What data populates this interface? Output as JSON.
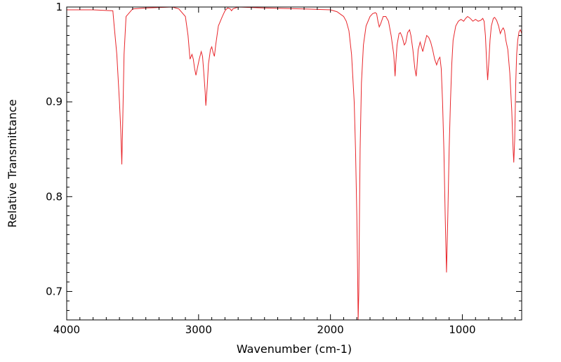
{
  "chart_data": {
    "type": "line",
    "xlabel": "Wavenumber (cm-1)",
    "ylabel": "Relative Transmittance",
    "xlim": [
      4000,
      550
    ],
    "ylim": [
      0.67,
      1.0
    ],
    "x_reversed": true,
    "xticks": [
      4000,
      3000,
      2000,
      1000
    ],
    "xtick_labels": [
      "4000",
      "3000",
      "2000",
      "1000"
    ],
    "yticks": [
      0.7,
      0.8,
      0.9,
      1.0
    ],
    "ytick_labels": [
      "0.7",
      "0.8",
      "0.9",
      "1"
    ],
    "grid": false,
    "line_color": "#e8262b",
    "series": [
      {
        "baseline": 0.998,
        "points": [
          [
            4000,
            0.997
          ],
          [
            3800,
            0.997
          ],
          [
            3650,
            0.996
          ],
          [
            3640,
            0.98
          ],
          [
            3620,
            0.95
          ],
          [
            3600,
            0.9
          ],
          [
            3590,
            0.87
          ],
          [
            3582,
            0.834
          ],
          [
            3575,
            0.88
          ],
          [
            3565,
            0.95
          ],
          [
            3550,
            0.99
          ],
          [
            3500,
            0.998
          ],
          [
            3400,
            0.999
          ],
          [
            3200,
            1.0
          ],
          [
            3150,
            0.998
          ],
          [
            3100,
            0.99
          ],
          [
            3080,
            0.97
          ],
          [
            3065,
            0.945
          ],
          [
            3050,
            0.95
          ],
          [
            3040,
            0.945
          ],
          [
            3030,
            0.935
          ],
          [
            3020,
            0.928
          ],
          [
            3010,
            0.935
          ],
          [
            2995,
            0.945
          ],
          [
            2980,
            0.953
          ],
          [
            2970,
            0.948
          ],
          [
            2960,
            0.93
          ],
          [
            2950,
            0.91
          ],
          [
            2945,
            0.896
          ],
          [
            2935,
            0.915
          ],
          [
            2925,
            0.94
          ],
          [
            2910,
            0.955
          ],
          [
            2900,
            0.958
          ],
          [
            2890,
            0.952
          ],
          [
            2880,
            0.948
          ],
          [
            2870,
            0.96
          ],
          [
            2850,
            0.98
          ],
          [
            2820,
            0.99
          ],
          [
            2800,
            0.996
          ],
          [
            2780,
            0.999
          ],
          [
            2760,
            0.998
          ],
          [
            2750,
            0.996
          ],
          [
            2740,
            0.998
          ],
          [
            2700,
            1.0
          ],
          [
            2500,
            0.999
          ],
          [
            2200,
            0.998
          ],
          [
            2000,
            0.997
          ],
          [
            1950,
            0.995
          ],
          [
            1920,
            0.992
          ],
          [
            1900,
            0.99
          ],
          [
            1880,
            0.985
          ],
          [
            1860,
            0.975
          ],
          [
            1840,
            0.95
          ],
          [
            1820,
            0.9
          ],
          [
            1810,
            0.85
          ],
          [
            1800,
            0.78
          ],
          [
            1795,
            0.73
          ],
          [
            1790,
            0.67
          ],
          [
            1785,
            0.7
          ],
          [
            1780,
            0.78
          ],
          [
            1775,
            0.85
          ],
          [
            1765,
            0.92
          ],
          [
            1750,
            0.96
          ],
          [
            1730,
            0.98
          ],
          [
            1700,
            0.99
          ],
          [
            1680,
            0.993
          ],
          [
            1660,
            0.994
          ],
          [
            1650,
            0.993
          ],
          [
            1640,
            0.985
          ],
          [
            1630,
            0.979
          ],
          [
            1620,
            0.982
          ],
          [
            1600,
            0.99
          ],
          [
            1580,
            0.99
          ],
          [
            1560,
            0.985
          ],
          [
            1540,
            0.97
          ],
          [
            1520,
            0.95
          ],
          [
            1510,
            0.927
          ],
          [
            1505,
            0.94
          ],
          [
            1495,
            0.96
          ],
          [
            1480,
            0.972
          ],
          [
            1470,
            0.973
          ],
          [
            1455,
            0.968
          ],
          [
            1440,
            0.96
          ],
          [
            1430,
            0.962
          ],
          [
            1415,
            0.973
          ],
          [
            1400,
            0.976
          ],
          [
            1390,
            0.97
          ],
          [
            1375,
            0.955
          ],
          [
            1360,
            0.935
          ],
          [
            1350,
            0.927
          ],
          [
            1345,
            0.935
          ],
          [
            1335,
            0.955
          ],
          [
            1320,
            0.963
          ],
          [
            1310,
            0.958
          ],
          [
            1300,
            0.953
          ],
          [
            1285,
            0.962
          ],
          [
            1270,
            0.97
          ],
          [
            1255,
            0.968
          ],
          [
            1240,
            0.963
          ],
          [
            1225,
            0.955
          ],
          [
            1210,
            0.945
          ],
          [
            1195,
            0.939
          ],
          [
            1180,
            0.945
          ],
          [
            1170,
            0.947
          ],
          [
            1160,
            0.935
          ],
          [
            1150,
            0.9
          ],
          [
            1140,
            0.85
          ],
          [
            1130,
            0.78
          ],
          [
            1120,
            0.72
          ],
          [
            1110,
            0.78
          ],
          [
            1100,
            0.85
          ],
          [
            1090,
            0.9
          ],
          [
            1080,
            0.94
          ],
          [
            1070,
            0.965
          ],
          [
            1050,
            0.98
          ],
          [
            1030,
            0.985
          ],
          [
            1010,
            0.987
          ],
          [
            990,
            0.985
          ],
          [
            975,
            0.988
          ],
          [
            960,
            0.99
          ],
          [
            940,
            0.988
          ],
          [
            920,
            0.985
          ],
          [
            900,
            0.987
          ],
          [
            880,
            0.985
          ],
          [
            860,
            0.986
          ],
          [
            845,
            0.988
          ],
          [
            835,
            0.985
          ],
          [
            825,
            0.97
          ],
          [
            815,
            0.94
          ],
          [
            808,
            0.923
          ],
          [
            800,
            0.94
          ],
          [
            790,
            0.965
          ],
          [
            780,
            0.98
          ],
          [
            765,
            0.988
          ],
          [
            755,
            0.989
          ],
          [
            740,
            0.986
          ],
          [
            725,
            0.98
          ],
          [
            712,
            0.972
          ],
          [
            700,
            0.976
          ],
          [
            690,
            0.978
          ],
          [
            680,
            0.975
          ],
          [
            670,
            0.965
          ],
          [
            655,
            0.955
          ],
          [
            640,
            0.93
          ],
          [
            625,
            0.89
          ],
          [
            615,
            0.85
          ],
          [
            610,
            0.836
          ],
          [
            603,
            0.86
          ],
          [
            595,
            0.92
          ],
          [
            588,
            0.95
          ],
          [
            580,
            0.965
          ],
          [
            570,
            0.974
          ],
          [
            560,
            0.976
          ],
          [
            550,
            0.972
          ]
        ]
      }
    ]
  }
}
